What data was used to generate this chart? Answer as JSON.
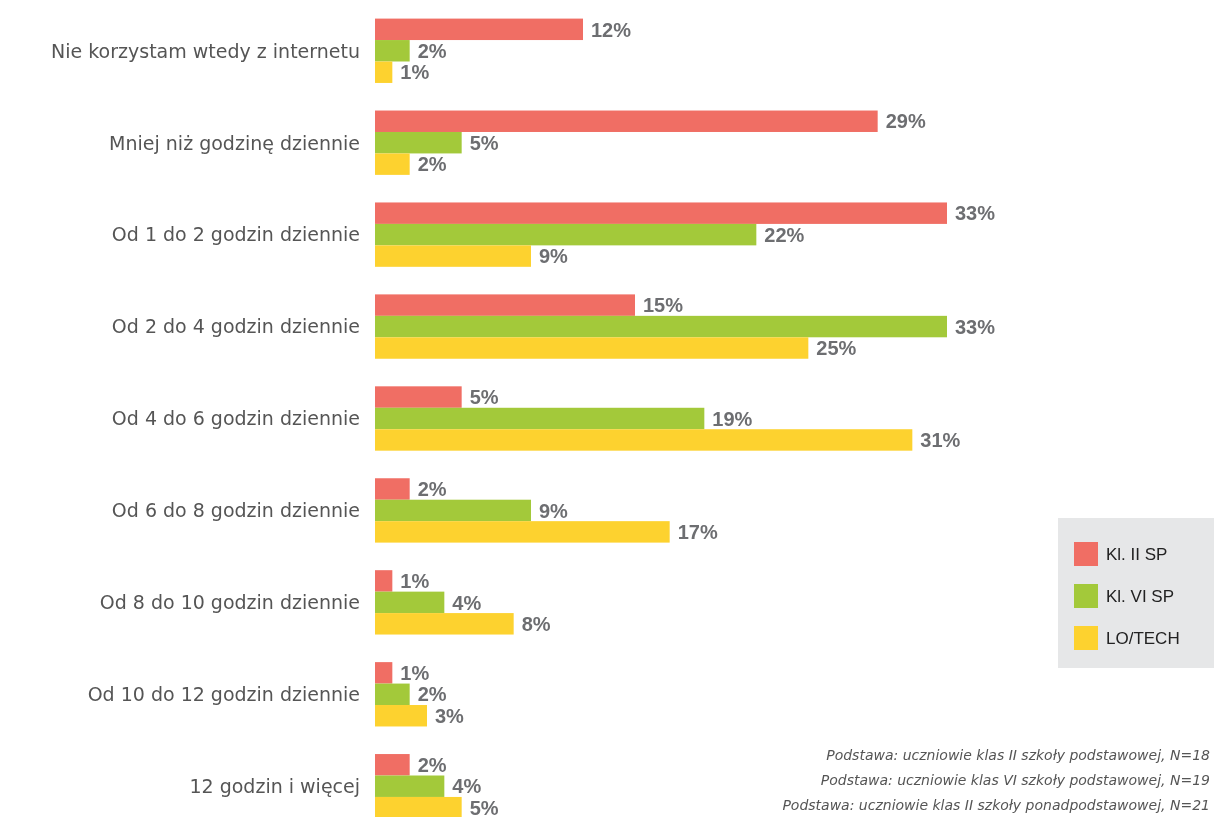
{
  "chart_data": {
    "type": "bar",
    "orientation": "horizontal",
    "categories": [
      "Nie korzystam wtedy z internetu",
      "Mniej niż godzinę dziennie",
      "Od 1 do 2 godzin dziennie",
      "Od 2 do 4 godzin dziennie",
      "Od 4 do 6 godzin dziennie",
      "Od 6 do 8 godzin dziennie",
      "Od 8 do 10 godzin dziennie",
      "Od 10 do 12 godzin dziennie",
      "12 godzin i więcej"
    ],
    "series": [
      {
        "name": "Kl. II SP",
        "color": "#f06e64",
        "values": [
          12,
          29,
          33,
          15,
          5,
          2,
          1,
          1,
          2
        ],
        "value_labels": [
          "12%",
          "29%",
          "33%",
          "15%",
          "5%",
          "2%",
          "1%",
          "1%",
          "2%"
        ]
      },
      {
        "name": "Kl. VI SP",
        "color": "#a3c93a",
        "values": [
          2,
          5,
          22,
          33,
          19,
          9,
          4,
          2,
          4
        ],
        "value_labels": [
          "2%",
          "5%",
          "22%",
          "33%",
          "19%",
          "9%",
          "4%",
          "2%",
          "4%"
        ]
      },
      {
        "name": "LO/TECH",
        "color": "#fdd22f",
        "values": [
          1,
          2,
          9,
          25,
          31,
          17,
          8,
          3,
          5
        ],
        "value_labels": [
          "1%",
          "2%",
          "9%",
          "25%",
          "31%",
          "17%",
          "8%",
          "3%",
          "5%"
        ]
      }
    ],
    "legend": "right",
    "annotations": [
      "Podstawa: uczniowie klas II szkoły podstawowej, N=18",
      "Podstawa: uczniowie klas VI szkoły podstawowej, N=19",
      "Podstawa: uczniowie klas II szkoły ponadpodstawowej, N=21"
    ]
  }
}
